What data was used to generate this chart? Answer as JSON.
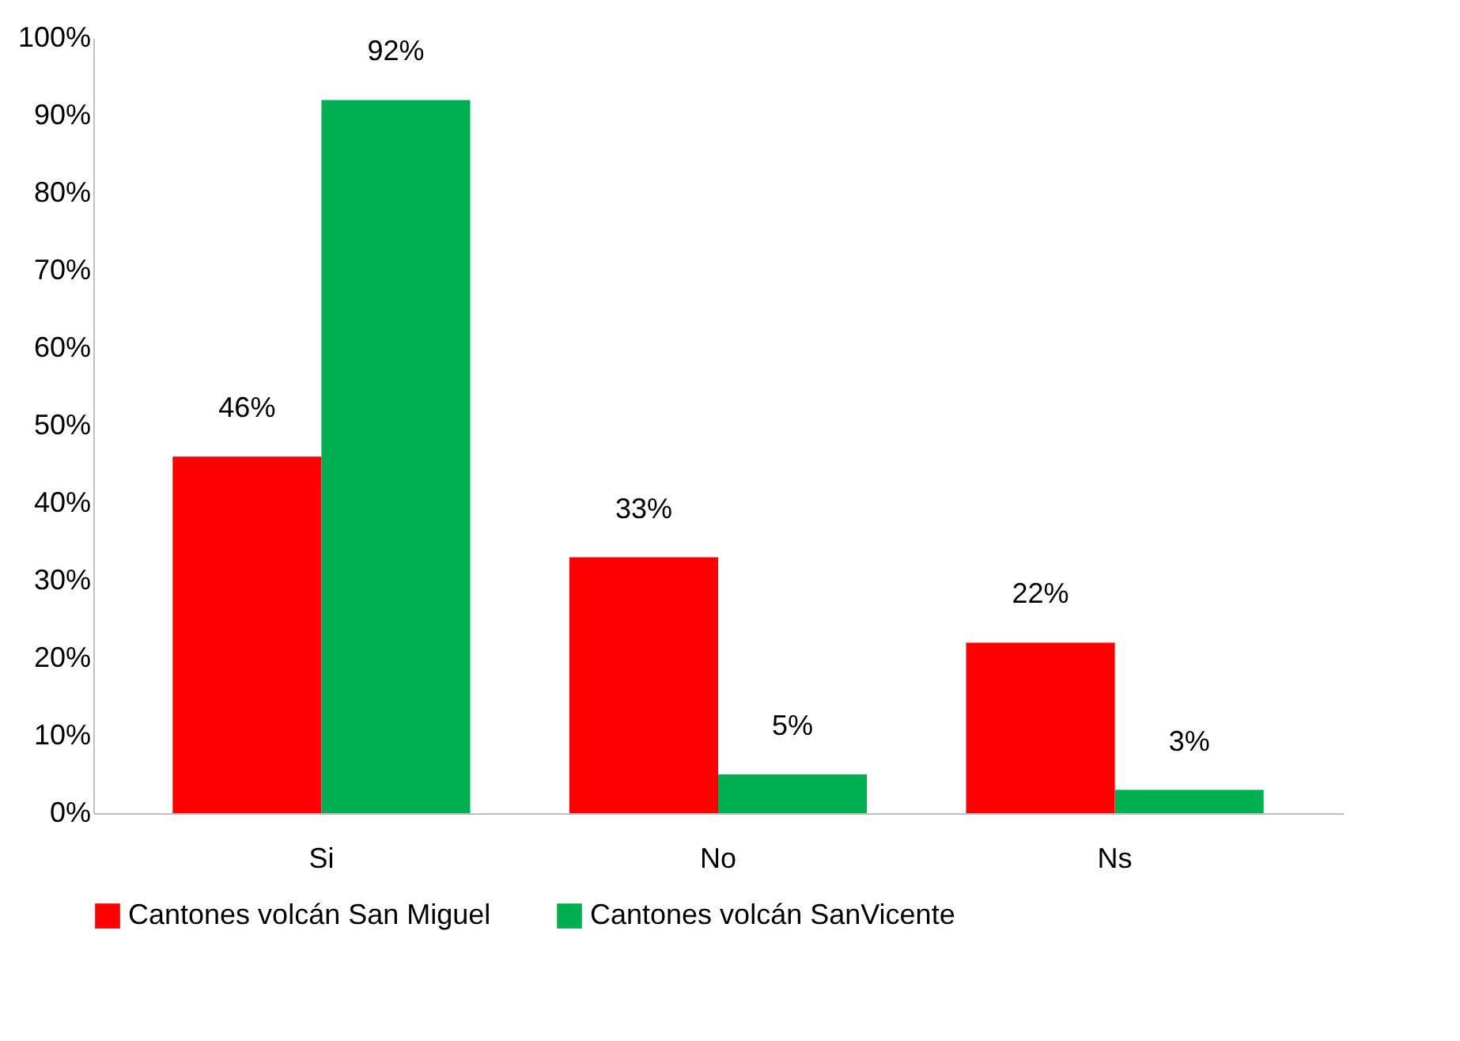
{
  "chart_data": {
    "type": "bar",
    "categories": [
      "Si",
      "No",
      "Ns"
    ],
    "series": [
      {
        "name": "Cantones volcán San Miguel",
        "color": "#ff0000",
        "values": [
          46,
          33,
          22
        ],
        "value_labels": [
          "46%",
          "33%",
          "22%"
        ]
      },
      {
        "name": "Cantones volcán SanVicente",
        "color": "#00b050",
        "values": [
          92,
          5,
          3
        ],
        "value_labels": [
          "92%",
          "5%",
          "3%"
        ]
      }
    ],
    "ylim": [
      0,
      100
    ],
    "yticks": [
      {
        "value": 0,
        "label": "0%"
      },
      {
        "value": 10,
        "label": "10%"
      },
      {
        "value": 20,
        "label": "20%"
      },
      {
        "value": 30,
        "label": "30%"
      },
      {
        "value": 40,
        "label": "40%"
      },
      {
        "value": 50,
        "label": "50%"
      },
      {
        "value": 60,
        "label": "60%"
      },
      {
        "value": 70,
        "label": "70%"
      },
      {
        "value": 80,
        "label": "80%"
      },
      {
        "value": 90,
        "label": "90%"
      },
      {
        "value": 100,
        "label": "100%"
      }
    ],
    "grid": false,
    "legend": "bottom"
  }
}
